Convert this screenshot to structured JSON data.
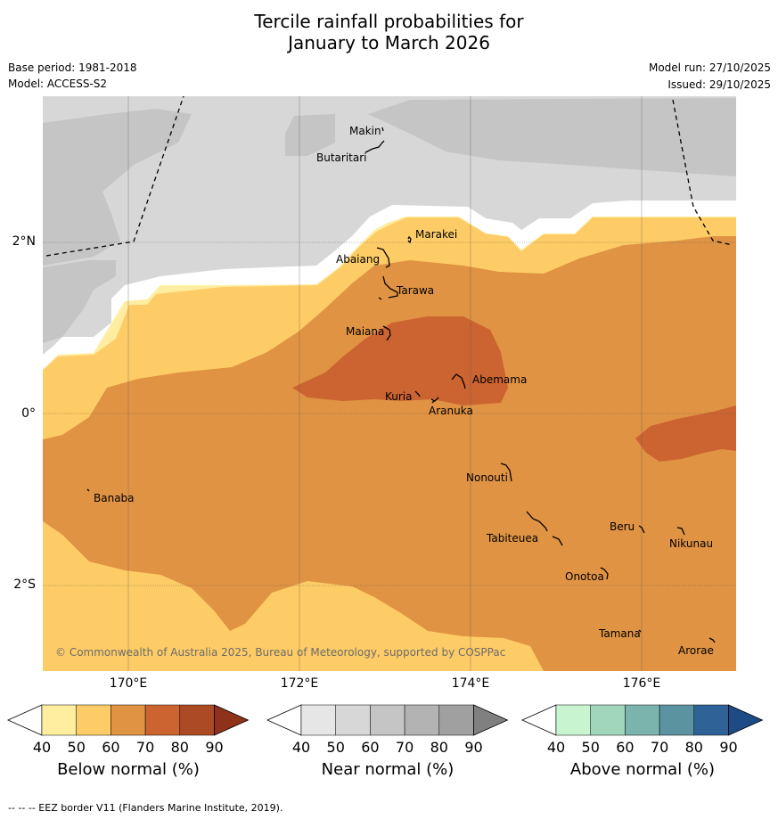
{
  "title": {
    "line1": "Tercile rainfall probabilities for",
    "line2": "January to March 2026"
  },
  "meta": {
    "base_period": "Base period: 1981-2018",
    "model": "Model: ACCESS-S2",
    "model_run": "Model run: 27/10/2025",
    "issued": "Issued: 29/10/2025"
  },
  "axes": {
    "lon_ticks": [
      "170°E",
      "172°E",
      "174°E",
      "176°E"
    ],
    "lat_ticks": [
      "2°N",
      "0°",
      "2°S"
    ]
  },
  "places": {
    "makin": "Makin",
    "butaritari": "Butaritari",
    "marakei": "Marakei",
    "abaiang": "Abaiang",
    "tarawa": "Tarawa",
    "maiana": "Maiana",
    "abemama": "Abemama",
    "kuria": "Kuria",
    "aranuka": "Aranuka",
    "nonouti": "Nonouti",
    "banaba": "Banaba",
    "beru": "Beru",
    "nikunau": "Nikunau",
    "tabiteuea": "Tabiteuea",
    "onotoa": "Onotoa",
    "tamana": "Tamana",
    "arorae": "Arorae"
  },
  "attribution": "© Commonwealth of Australia 2025, Bureau of Meteorology, supported by COSPPac",
  "colorbars": {
    "ticks": [
      "40",
      "50",
      "60",
      "70",
      "80",
      "90"
    ],
    "below": {
      "label": "Below normal (%)",
      "colors": [
        "#ffffff",
        "#ffeda0",
        "#fecc66",
        "#e09343",
        "#cc6431",
        "#ac4a26",
        "#8f3219"
      ]
    },
    "near": {
      "label": "Near normal (%)",
      "colors": [
        "#ffffff",
        "#e6e6e6",
        "#d7d7d7",
        "#c5c5c5",
        "#b3b3b3",
        "#a0a0a0",
        "#808080"
      ]
    },
    "above": {
      "label": "Above normal (%)",
      "colors": [
        "#ffffff",
        "#c8f5d0",
        "#a2d6bc",
        "#7ab4ad",
        "#5b93a1",
        "#2f6297",
        "#1e4b86"
      ]
    }
  },
  "footer": "--  --  -- EEZ border V11 (Flanders Marine Institute, 2019)."
}
